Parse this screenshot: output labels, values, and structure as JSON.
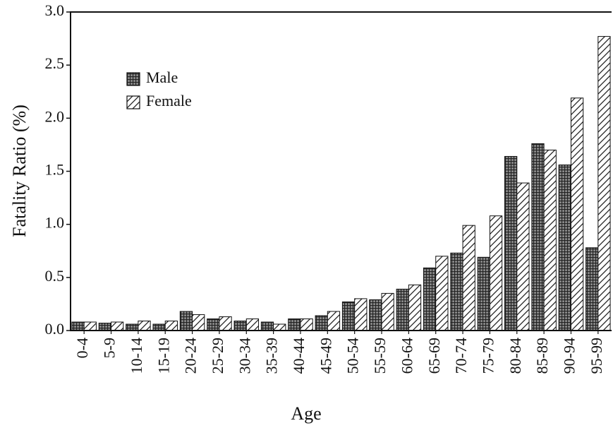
{
  "chart_data": {
    "type": "bar",
    "x_label": "Age",
    "y_label": "Fatality Ratio (%)",
    "categories": [
      "0-4",
      "5-9",
      "10-14",
      "15-19",
      "20-24",
      "25-29",
      "30-34",
      "35-39",
      "40-44",
      "45-49",
      "50-54",
      "55-59",
      "60-64",
      "65-69",
      "70-74",
      "75-79",
      "80-84",
      "85-89",
      "90-94",
      "95-99"
    ],
    "series": [
      {
        "name": "Male",
        "color": "#222222",
        "pattern": "grid",
        "values": [
          0.08,
          0.07,
          0.06,
          0.06,
          0.18,
          0.11,
          0.09,
          0.08,
          0.11,
          0.14,
          0.27,
          0.29,
          0.39,
          0.59,
          0.73,
          0.69,
          1.64,
          1.76,
          1.56,
          0.78
        ]
      },
      {
        "name": "Female",
        "color": "#222222",
        "pattern": "hatch",
        "values": [
          0.08,
          0.08,
          0.09,
          0.09,
          0.15,
          0.13,
          0.11,
          0.06,
          0.11,
          0.18,
          0.3,
          0.35,
          0.43,
          0.7,
          0.99,
          1.08,
          1.39,
          1.7,
          2.19,
          2.77
        ]
      }
    ],
    "ylim": [
      0,
      3
    ],
    "yticks": [
      {
        "value": 0,
        "label": "0.0"
      },
      0.5,
      {
        "value": 1,
        "label": "1.0"
      },
      1.5,
      {
        "value": 2,
        "label": "2.0"
      },
      2.5,
      {
        "value": 3,
        "label": "3.0"
      }
    ],
    "legend": "upper left"
  }
}
